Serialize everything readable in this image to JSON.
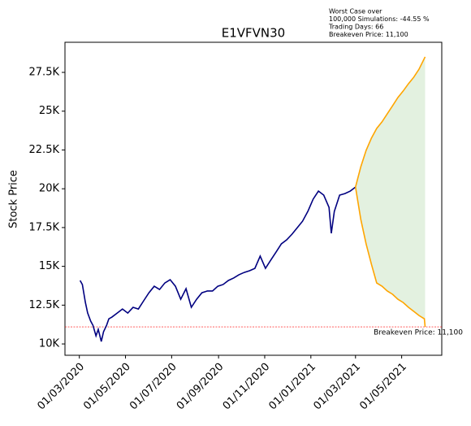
{
  "chart_data": {
    "type": "line",
    "title": "E1VFVN30",
    "ylabel": "Stock Price",
    "xlim": [
      "2020-02-11",
      "2021-06-23"
    ],
    "ylim": [
      9270,
      29440
    ],
    "xticks": [
      {
        "value": "2020-03-01",
        "label": "01/03/2020"
      },
      {
        "value": "2020-05-01",
        "label": "01/05/2020"
      },
      {
        "value": "2020-07-01",
        "label": "01/07/2020"
      },
      {
        "value": "2020-09-01",
        "label": "01/09/2020"
      },
      {
        "value": "2020-11-01",
        "label": "01/11/2020"
      },
      {
        "value": "2021-01-01",
        "label": "01/01/2021"
      },
      {
        "value": "2021-03-01",
        "label": "01/03/2021"
      },
      {
        "value": "2021-05-01",
        "label": "01/05/2021"
      }
    ],
    "yticks": [
      {
        "value": 10000,
        "label": "10K"
      },
      {
        "value": 12500,
        "label": "12.5K"
      },
      {
        "value": 15000,
        "label": "15K"
      },
      {
        "value": 17500,
        "label": "17.5K"
      },
      {
        "value": 20000,
        "label": "20K"
      },
      {
        "value": 22500,
        "label": "22.5K"
      },
      {
        "value": 25000,
        "label": "25K"
      },
      {
        "value": 27500,
        "label": "27.5K"
      }
    ],
    "series": [
      {
        "color": "#000080",
        "x": [
          "2020-03-02",
          "2020-03-05",
          "2020-03-09",
          "2020-03-12",
          "2020-03-16",
          "2020-03-19",
          "2020-03-23",
          "2020-03-26",
          "2020-03-30",
          "2020-04-02",
          "2020-04-06",
          "2020-04-09",
          "2020-04-13",
          "2020-04-20",
          "2020-04-27",
          "2020-05-04",
          "2020-05-11",
          "2020-05-18",
          "2020-05-25",
          "2020-06-01",
          "2020-06-08",
          "2020-06-15",
          "2020-06-22",
          "2020-06-29",
          "2020-07-06",
          "2020-07-13",
          "2020-07-20",
          "2020-07-27",
          "2020-08-03",
          "2020-08-10",
          "2020-08-17",
          "2020-08-24",
          "2020-08-31",
          "2020-09-07",
          "2020-09-14",
          "2020-09-21",
          "2020-09-28",
          "2020-10-05",
          "2020-10-12",
          "2020-10-19",
          "2020-10-26",
          "2020-11-02",
          "2020-11-09",
          "2020-11-16",
          "2020-11-23",
          "2020-11-30",
          "2020-12-07",
          "2020-12-14",
          "2020-12-21",
          "2020-12-28",
          "2021-01-04",
          "2021-01-11",
          "2021-01-18",
          "2021-01-25",
          "2021-01-28",
          "2021-02-01",
          "2021-02-08",
          "2021-02-15",
          "2021-02-22",
          "2021-03-01"
        ],
        "values": [
          14090,
          13830,
          12670,
          11990,
          11470,
          11200,
          10520,
          10940,
          10160,
          10790,
          11200,
          11620,
          11730,
          11990,
          12250,
          11990,
          12360,
          12250,
          12780,
          13300,
          13720,
          13510,
          13930,
          14140,
          13720,
          12880,
          13560,
          12360,
          12880,
          13300,
          13410,
          13410,
          13720,
          13830,
          14090,
          14250,
          14460,
          14610,
          14720,
          14870,
          15660,
          14870,
          15400,
          15920,
          16450,
          16710,
          17070,
          17490,
          17910,
          18540,
          19330,
          19850,
          19590,
          18800,
          17130,
          18540,
          19590,
          19690,
          19850,
          20110
        ]
      },
      {
        "color": "#ffa500",
        "x": [
          "2021-03-01",
          "2021-03-08",
          "2021-03-15",
          "2021-03-22",
          "2021-03-29",
          "2021-04-05",
          "2021-04-12",
          "2021-04-19",
          "2021-04-26",
          "2021-05-03",
          "2021-05-10",
          "2021-05-17",
          "2021-05-24",
          "2021-06-01"
        ],
        "values": [
          20110,
          21420,
          22470,
          23260,
          23890,
          24310,
          24830,
          25350,
          25880,
          26300,
          26770,
          27190,
          27710,
          28500
        ]
      },
      {
        "color": "#ffa500",
        "x": [
          "2021-03-01",
          "2021-03-08",
          "2021-03-15",
          "2021-03-22",
          "2021-03-29",
          "2021-04-05",
          "2021-04-12",
          "2021-04-19",
          "2021-04-26",
          "2021-05-03",
          "2021-05-10",
          "2021-05-17",
          "2021-05-24",
          "2021-05-31",
          "2021-06-01"
        ],
        "values": [
          20110,
          18020,
          16450,
          15140,
          13930,
          13720,
          13410,
          13200,
          12880,
          12670,
          12360,
          12100,
          11830,
          11620,
          11100
        ]
      }
    ],
    "fill_color": "#e3f1e0",
    "hline": {
      "value": 11100,
      "color": "#ff0000",
      "label": "Breakeven Price: 11,100"
    },
    "annotation": [
      "Worst Case over",
      "100,000 Simulations: -44.55 %",
      "Trading Days: 66",
      "Breakeven Price: 11,100"
    ]
  }
}
